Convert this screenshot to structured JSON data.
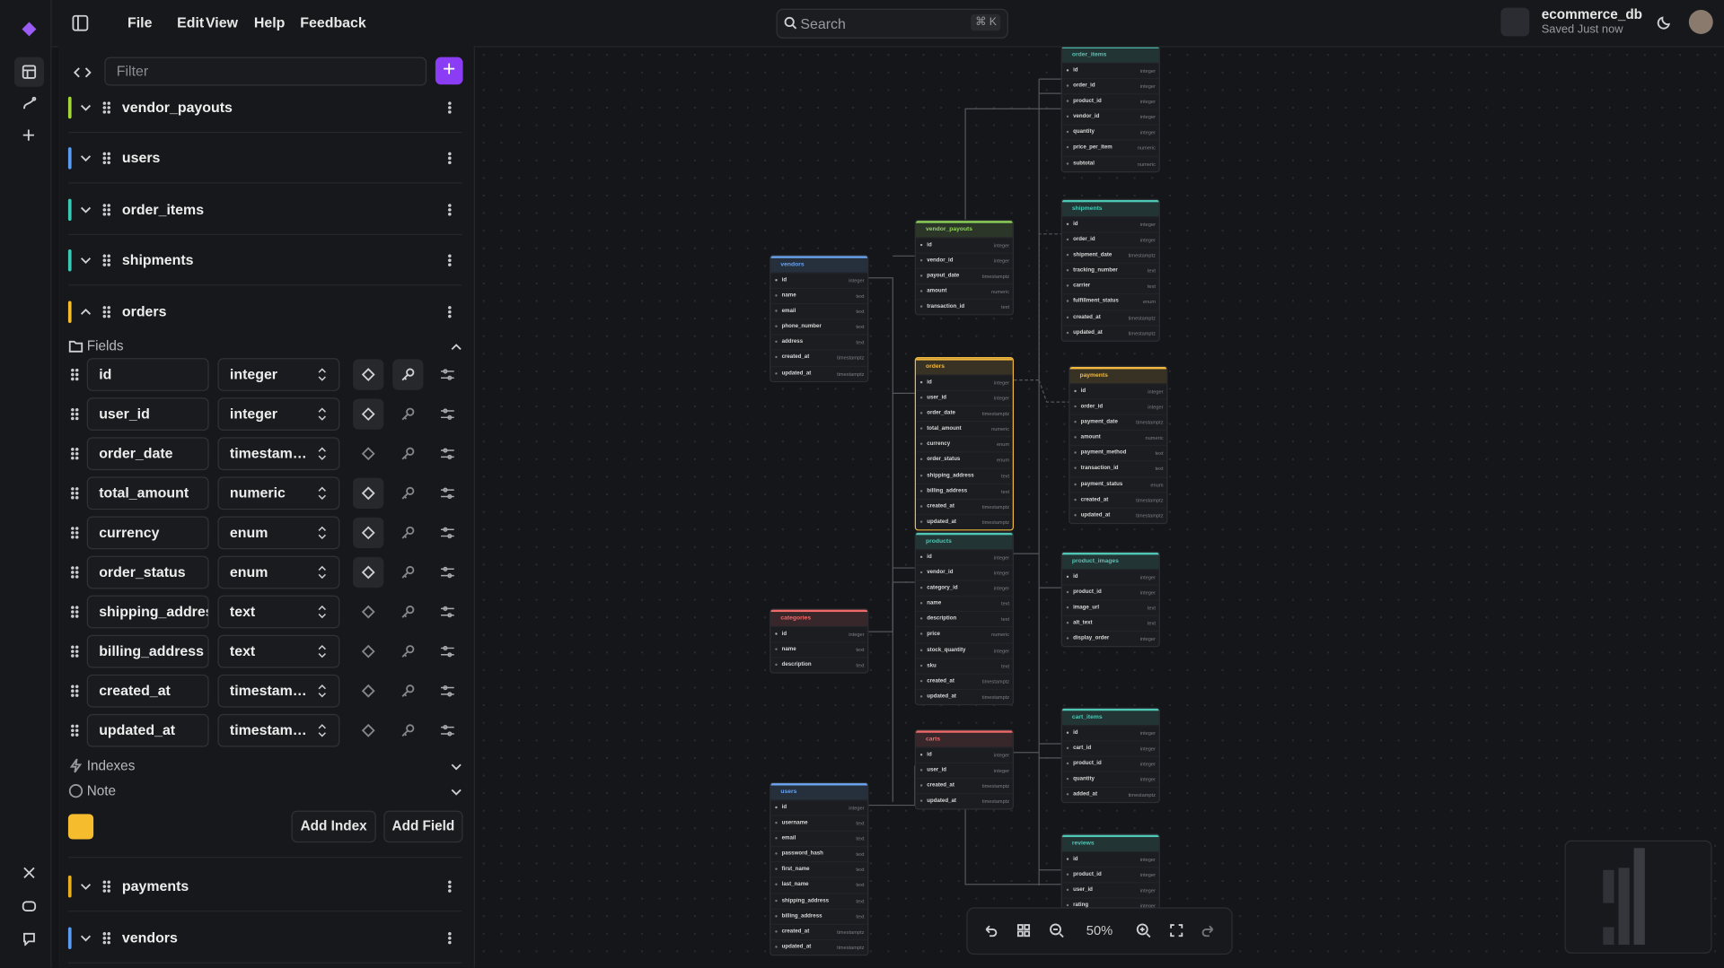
{
  "menu": [
    "File",
    "Edit",
    "View",
    "Help",
    "Feedback"
  ],
  "search": {
    "placeholder": "Search",
    "shortcut": "⌘ K"
  },
  "database": {
    "name": "ecommerce_db",
    "status": "Saved Just now"
  },
  "sidebar": {
    "filter_placeholder": "Filter",
    "tables": [
      {
        "name": "vendor_payouts",
        "color": "#a3d63a"
      },
      {
        "name": "users",
        "color": "#5b9cf0"
      },
      {
        "name": "order_items",
        "color": "#3cc9b4"
      },
      {
        "name": "shipments",
        "color": "#3cc9b4"
      },
      {
        "name": "orders",
        "color": "#f5bd2e"
      },
      {
        "name": "payments",
        "color": "#e8b021"
      },
      {
        "name": "vendors",
        "color": "#5b9cf0"
      }
    ],
    "expanded": {
      "fields_label": "Fields",
      "fields": [
        {
          "name": "id",
          "type": "integer",
          "not_null": true,
          "primary_key": true
        },
        {
          "name": "user_id",
          "type": "integer",
          "not_null": true,
          "primary_key": false
        },
        {
          "name": "order_date",
          "type": "timestamptz",
          "not_null": false,
          "primary_key": false
        },
        {
          "name": "total_amount",
          "type": "numeric",
          "not_null": true,
          "primary_key": false
        },
        {
          "name": "currency",
          "type": "enum",
          "not_null": true,
          "primary_key": false
        },
        {
          "name": "order_status",
          "type": "enum",
          "not_null": true,
          "primary_key": false
        },
        {
          "name": "shipping_address",
          "type": "text",
          "not_null": false,
          "primary_key": false
        },
        {
          "name": "billing_address",
          "type": "text",
          "not_null": false,
          "primary_key": false
        },
        {
          "name": "created_at",
          "type": "timestamptz",
          "not_null": false,
          "primary_key": false
        },
        {
          "name": "updated_at",
          "type": "timestamptz",
          "not_null": false,
          "primary_key": false
        }
      ],
      "indexes_label": "Indexes",
      "note_label": "Note",
      "add_index": "Add Index",
      "add_field": "Add Field"
    }
  },
  "diagram": {
    "tables": [
      {
        "name": "order_items",
        "color": "#4fc7b5",
        "fields": [
          [
            "id",
            "integer"
          ],
          [
            "order_id",
            "integer"
          ],
          [
            "product_id",
            "integer"
          ],
          [
            "vendor_id",
            "integer"
          ],
          [
            "quantity",
            "integer"
          ],
          [
            "price_per_item",
            "numeric"
          ],
          [
            "subtotal",
            "numeric"
          ]
        ]
      },
      {
        "name": "shipments",
        "color": "#4fc7b5",
        "fields": [
          [
            "id",
            "integer"
          ],
          [
            "order_id",
            "integer"
          ],
          [
            "shipment_date",
            "timestamptz"
          ],
          [
            "tracking_number",
            "text"
          ],
          [
            "carrier",
            "text"
          ],
          [
            "fulfillment_status",
            "enum"
          ],
          [
            "created_at",
            "timestamptz"
          ],
          [
            "updated_at",
            "timestamptz"
          ]
        ]
      },
      {
        "name": "vendor_payouts",
        "color": "#8fd45a",
        "fields": [
          [
            "id",
            "integer"
          ],
          [
            "vendor_id",
            "integer"
          ],
          [
            "payout_date",
            "timestamptz"
          ],
          [
            "amount",
            "numeric"
          ],
          [
            "transaction_id",
            "text"
          ]
        ]
      },
      {
        "name": "vendors",
        "color": "#6aa3f0",
        "fields": [
          [
            "id",
            "integer"
          ],
          [
            "name",
            "text"
          ],
          [
            "email",
            "text"
          ],
          [
            "phone_number",
            "text"
          ],
          [
            "address",
            "text"
          ],
          [
            "created_at",
            "timestamptz"
          ],
          [
            "updated_at",
            "timestamptz"
          ]
        ]
      },
      {
        "name": "orders",
        "color": "#f2b93e",
        "fields": [
          [
            "id",
            "integer"
          ],
          [
            "user_id",
            "integer"
          ],
          [
            "order_date",
            "timestamptz"
          ],
          [
            "total_amount",
            "numeric"
          ],
          [
            "currency",
            "enum"
          ],
          [
            "order_status",
            "enum"
          ],
          [
            "shipping_address",
            "text"
          ],
          [
            "billing_address",
            "text"
          ],
          [
            "created_at",
            "timestamptz"
          ],
          [
            "updated_at",
            "timestamptz"
          ]
        ]
      },
      {
        "name": "payments",
        "color": "#f2b93e",
        "fields": [
          [
            "id",
            "integer"
          ],
          [
            "order_id",
            "integer"
          ],
          [
            "payment_date",
            "timestamptz"
          ],
          [
            "amount",
            "numeric"
          ],
          [
            "payment_method",
            "text"
          ],
          [
            "transaction_id",
            "text"
          ],
          [
            "payment_status",
            "enum"
          ],
          [
            "created_at",
            "timestamptz"
          ],
          [
            "updated_at",
            "timestamptz"
          ]
        ]
      },
      {
        "name": "products",
        "color": "#4fc7b5",
        "fields": [
          [
            "id",
            "integer"
          ],
          [
            "vendor_id",
            "integer"
          ],
          [
            "category_id",
            "integer"
          ],
          [
            "name",
            "text"
          ],
          [
            "description",
            "text"
          ],
          [
            "price",
            "numeric"
          ],
          [
            "stock_quantity",
            "integer"
          ],
          [
            "sku",
            "text"
          ],
          [
            "created_at",
            "timestamptz"
          ],
          [
            "updated_at",
            "timestamptz"
          ]
        ]
      },
      {
        "name": "product_images",
        "color": "#4fc7b5",
        "fields": [
          [
            "id",
            "integer"
          ],
          [
            "product_id",
            "integer"
          ],
          [
            "image_url",
            "text"
          ],
          [
            "alt_text",
            "text"
          ],
          [
            "display_order",
            "integer"
          ]
        ]
      },
      {
        "name": "categories",
        "color": "#f06a6a",
        "fields": [
          [
            "id",
            "integer"
          ],
          [
            "name",
            "text"
          ],
          [
            "description",
            "text"
          ]
        ]
      },
      {
        "name": "cart_items",
        "color": "#4fc7b5",
        "fields": [
          [
            "id",
            "integer"
          ],
          [
            "cart_id",
            "integer"
          ],
          [
            "product_id",
            "integer"
          ],
          [
            "quantity",
            "integer"
          ],
          [
            "added_at",
            "timestamptz"
          ]
        ]
      },
      {
        "name": "carts",
        "color": "#f06a6a",
        "fields": [
          [
            "id",
            "integer"
          ],
          [
            "user_id",
            "integer"
          ],
          [
            "created_at",
            "timestamptz"
          ],
          [
            "updated_at",
            "timestamptz"
          ]
        ]
      },
      {
        "name": "users",
        "color": "#6aa3f0",
        "fields": [
          [
            "id",
            "integer"
          ],
          [
            "username",
            "text"
          ],
          [
            "email",
            "text"
          ],
          [
            "password_hash",
            "text"
          ],
          [
            "first_name",
            "text"
          ],
          [
            "last_name",
            "text"
          ],
          [
            "shipping_address",
            "text"
          ],
          [
            "billing_address",
            "text"
          ],
          [
            "created_at",
            "timestamptz"
          ],
          [
            "updated_at",
            "timestamptz"
          ]
        ]
      },
      {
        "name": "reviews",
        "color": "#4fc7b5",
        "fields": [
          [
            "id",
            "integer"
          ],
          [
            "product_id",
            "integer"
          ],
          [
            "user_id",
            "integer"
          ],
          [
            "rating",
            "integer"
          ]
        ]
      }
    ]
  },
  "zoom": "50%"
}
